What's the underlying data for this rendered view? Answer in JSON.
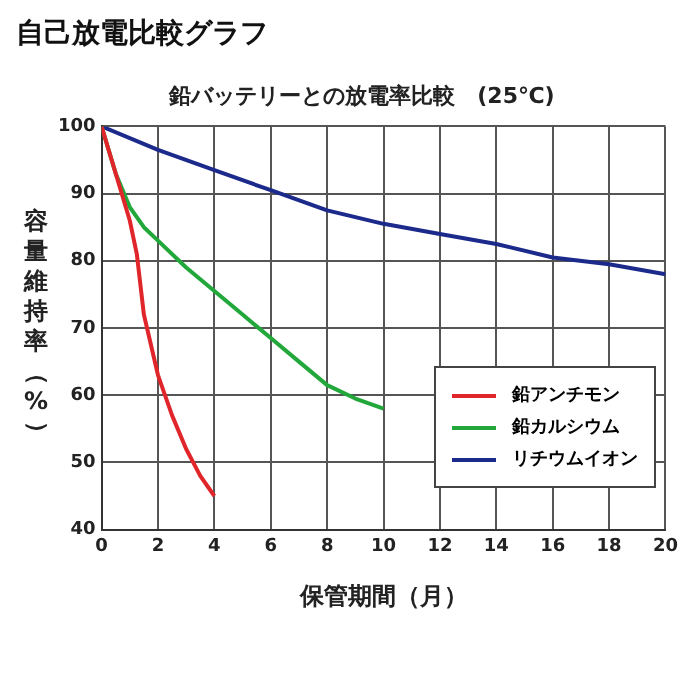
{
  "chart_data": {
    "type": "line",
    "title": "自己放電比較グラフ",
    "subtitle": "鉛バッテリーとの放電率比較　(25℃)",
    "xlabel": "保管期間（月）",
    "ylabel": "容量維持率（%）",
    "xlim": [
      0,
      20
    ],
    "xticks": [
      0,
      2,
      4,
      6,
      8,
      10,
      12,
      14,
      16,
      18,
      20
    ],
    "ylim": [
      40,
      100
    ],
    "yticks": [
      40,
      50,
      60,
      70,
      80,
      90,
      100
    ],
    "grid": true,
    "legend": "bottom right",
    "marker": "none",
    "line_style": "solid",
    "series": [
      {
        "name": "鉛アンチモン",
        "color": "#e0262b",
        "x": [
          0,
          0.5,
          1,
          1.25,
          1.5,
          2,
          2.5,
          3,
          3.5,
          4
        ],
        "values": [
          100,
          93,
          86,
          81,
          72,
          63,
          57,
          52,
          48,
          45
        ]
      },
      {
        "name": "鉛カルシウム",
        "color": "#22a83a",
        "x": [
          0,
          0.5,
          1,
          1.5,
          2,
          3,
          4,
          5,
          6,
          7,
          8,
          9,
          10
        ],
        "values": [
          100,
          93,
          88,
          85,
          83,
          79,
          75.5,
          72,
          68.5,
          65,
          61.5,
          59.5,
          58
        ]
      },
      {
        "name": "リチウムイオン",
        "color": "#1c2a8c",
        "x": [
          0,
          2,
          4,
          6,
          8,
          10,
          12,
          14,
          16,
          18,
          20
        ],
        "values": [
          100,
          96.5,
          93.5,
          90.5,
          87.5,
          85.5,
          84,
          82.5,
          80.5,
          79.5,
          78
        ]
      }
    ]
  }
}
